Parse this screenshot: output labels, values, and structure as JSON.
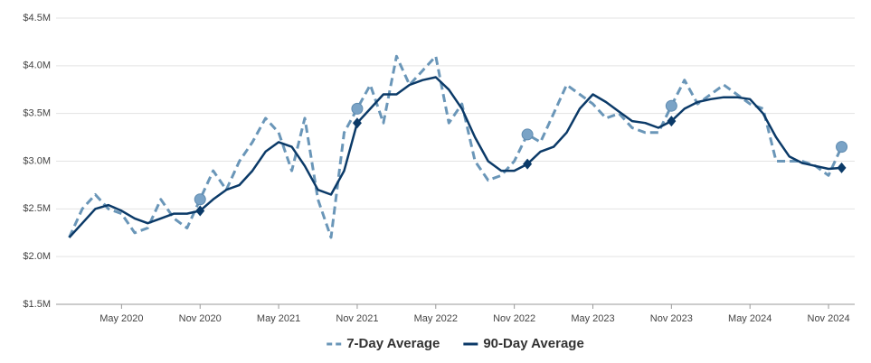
{
  "chart_data": {
    "type": "line",
    "x": [
      "2020-01",
      "2020-02",
      "2020-03",
      "2020-04",
      "2020-05",
      "2020-06",
      "2020-07",
      "2020-08",
      "2020-09",
      "2020-10",
      "2020-11",
      "2020-12",
      "2021-01",
      "2021-02",
      "2021-03",
      "2021-04",
      "2021-05",
      "2021-06",
      "2021-07",
      "2021-08",
      "2021-09",
      "2021-10",
      "2021-11",
      "2021-12",
      "2022-01",
      "2022-02",
      "2022-03",
      "2022-04",
      "2022-05",
      "2022-06",
      "2022-07",
      "2022-08",
      "2022-09",
      "2022-10",
      "2022-11",
      "2022-12",
      "2023-01",
      "2023-02",
      "2023-03",
      "2023-04",
      "2023-05",
      "2023-06",
      "2023-07",
      "2023-08",
      "2023-09",
      "2023-10",
      "2023-11",
      "2023-12",
      "2024-01",
      "2024-02",
      "2024-03",
      "2024-04",
      "2024-05",
      "2024-06",
      "2024-07",
      "2024-08",
      "2024-09",
      "2024-10",
      "2024-11",
      "2024-12"
    ],
    "series": [
      {
        "name": "7-Day Average",
        "color": "#6a96b8",
        "dashed": true,
        "values": [
          2200000,
          2500000,
          2650000,
          2500000,
          2450000,
          2250000,
          2300000,
          2600000,
          2400000,
          2300000,
          2600000,
          2900000,
          2700000,
          3000000,
          3200000,
          3450000,
          3300000,
          2900000,
          3450000,
          2600000,
          2200000,
          3300000,
          3550000,
          3800000,
          3400000,
          4100000,
          3800000,
          3950000,
          4100000,
          3400000,
          3600000,
          3000000,
          2800000,
          2850000,
          3000000,
          3280000,
          3200000,
          3500000,
          3800000,
          3700000,
          3600000,
          3450000,
          3500000,
          3350000,
          3300000,
          3300000,
          3580000,
          3850000,
          3600000,
          3700000,
          3800000,
          3700000,
          3600000,
          3550000,
          3000000,
          3000000,
          3000000,
          2950000,
          2850000,
          3150000
        ]
      },
      {
        "name": "90-Day Average",
        "color": "#0b3a68",
        "dashed": false,
        "values": [
          2200000,
          2350000,
          2500000,
          2540000,
          2480000,
          2400000,
          2350000,
          2400000,
          2450000,
          2450000,
          2480000,
          2600000,
          2700000,
          2750000,
          2900000,
          3100000,
          3200000,
          3150000,
          2950000,
          2700000,
          2650000,
          2900000,
          3400000,
          3550000,
          3700000,
          3700000,
          3800000,
          3850000,
          3880000,
          3750000,
          3550000,
          3250000,
          3000000,
          2900000,
          2900000,
          2970000,
          3100000,
          3150000,
          3300000,
          3550000,
          3700000,
          3620000,
          3520000,
          3420000,
          3400000,
          3350000,
          3420000,
          3550000,
          3620000,
          3650000,
          3670000,
          3670000,
          3650000,
          3500000,
          3250000,
          3050000,
          2980000,
          2950000,
          2920000,
          2930000
        ]
      }
    ],
    "highlight_x": [
      "2020-11",
      "2021-11",
      "2022-12",
      "2023-11",
      "2024-12"
    ],
    "xlim": [
      "2019-12",
      "2025-01"
    ],
    "xticks": [
      {
        "value": "2020-05",
        "label": "May 2020"
      },
      {
        "value": "2020-11",
        "label": "Nov 2020"
      },
      {
        "value": "2021-05",
        "label": "May 2021"
      },
      {
        "value": "2021-11",
        "label": "Nov 2021"
      },
      {
        "value": "2022-05",
        "label": "May 2022"
      },
      {
        "value": "2022-11",
        "label": "Nov 2022"
      },
      {
        "value": "2023-05",
        "label": "May 2023"
      },
      {
        "value": "2023-11",
        "label": "Nov 2023"
      },
      {
        "value": "2024-05",
        "label": "May 2024"
      },
      {
        "value": "2024-11",
        "label": "Nov 2024"
      }
    ],
    "ylim": [
      1500000,
      4500000
    ],
    "yticks": [
      {
        "value": 1500000,
        "label": "$1.5M"
      },
      {
        "value": 2000000,
        "label": "$2.0M"
      },
      {
        "value": 2500000,
        "label": "$2.5M"
      },
      {
        "value": 3000000,
        "label": "$3.0M"
      },
      {
        "value": 3500000,
        "label": "$3.5M"
      },
      {
        "value": 4000000,
        "label": "$4.0M"
      },
      {
        "value": 4500000,
        "label": "$4.5M"
      }
    ],
    "grid": true,
    "legend": "bottom"
  }
}
